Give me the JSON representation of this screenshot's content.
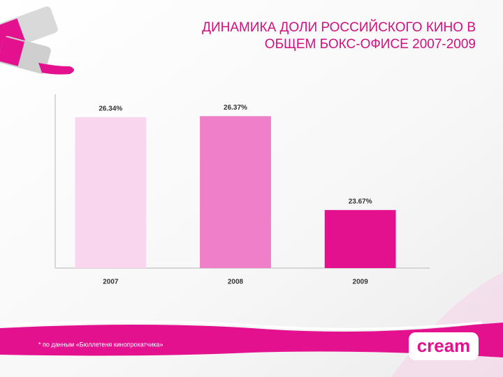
{
  "chart_data": {
    "type": "bar",
    "title": "ДИНАМИКА ДОЛИ РОССИЙСКОГО КИНО В ОБЩЕМ БОКС-ОФИСЕ 2007-2009",
    "categories": [
      "2007",
      "2008",
      "2009"
    ],
    "values": [
      26.34,
      26.37,
      23.67
    ],
    "value_labels": [
      "26.34%",
      "26.37%",
      "23.67%"
    ],
    "colors": [
      "#f9d5ee",
      "#f07fc9",
      "#e4118f"
    ],
    "ylim": [
      22,
      27
    ]
  },
  "footnote": "* по данным «Бюллетеня кинопрокатчика»",
  "logo": "cream"
}
